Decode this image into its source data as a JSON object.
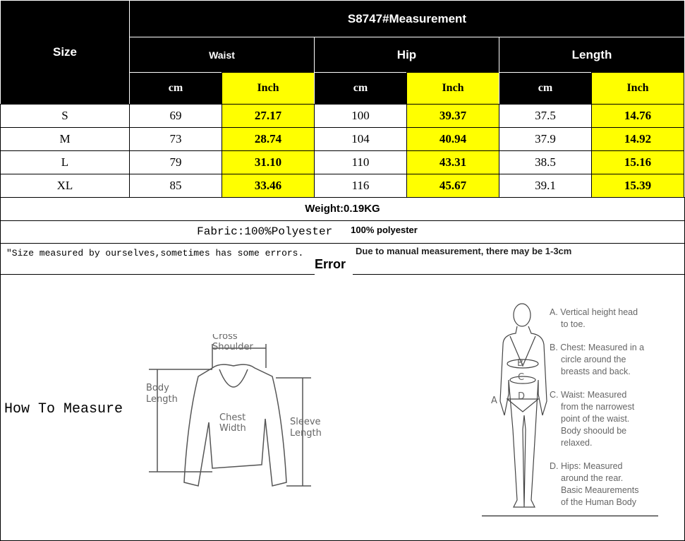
{
  "table": {
    "title": "S8747#Measurement",
    "size_header": "Size",
    "groups": [
      "Waist",
      "Hip",
      "Length"
    ],
    "units": [
      "cm",
      "Inch",
      "cm",
      "Inch",
      "cm",
      "Inch"
    ],
    "rows": [
      {
        "size": "S",
        "values": [
          "69",
          "27.17",
          "100",
          "39.37",
          "37.5",
          "14.76"
        ]
      },
      {
        "size": "M",
        "values": [
          "73",
          "28.74",
          "104",
          "40.94",
          "37.9",
          "14.92"
        ]
      },
      {
        "size": "L",
        "values": [
          "79",
          "31.10",
          "110",
          "43.31",
          "38.5",
          "15.16"
        ]
      },
      {
        "size": "XL",
        "values": [
          "85",
          "33.46",
          "116",
          "45.67",
          "39.1",
          "15.39"
        ]
      }
    ]
  },
  "weight": "Weight:0.19KG",
  "fabric": "Fabric:100%Polyester",
  "fabric_overlay": "100% polyester",
  "note": "\"Size measured by ourselves,sometimes has some errors.",
  "note_overlay": "Due to manual measurement, there may be 1-3cm",
  "note_overlay2": "Error",
  "how_to_measure": "How To Measure",
  "sweater_labels": {
    "shoulder1": "Cross",
    "shoulder2": "Shoulder",
    "body1": "Body",
    "body2": "Length",
    "chest1": "Chest",
    "chest2": "Width",
    "sleeve1": "Sleeve",
    "sleeve2": "Length"
  },
  "body_letters": [
    "A",
    "B",
    "C",
    "D"
  ],
  "body_notes": [
    [
      "A. Vertical height head",
      "to toe."
    ],
    [
      "B. Chest: Measured in a",
      "circle around the",
      "breasts and back."
    ],
    [
      "C. Waist: Measured",
      "from the narrowest",
      "point of the waist.",
      "Body shoould be",
      "relaxed."
    ],
    [
      "D. Hips: Measured",
      "around the rear.",
      "Basic Meaurements",
      "of the Human Body"
    ]
  ],
  "colors": {
    "header": "#000000",
    "inch_highlight": "#ffff00"
  }
}
